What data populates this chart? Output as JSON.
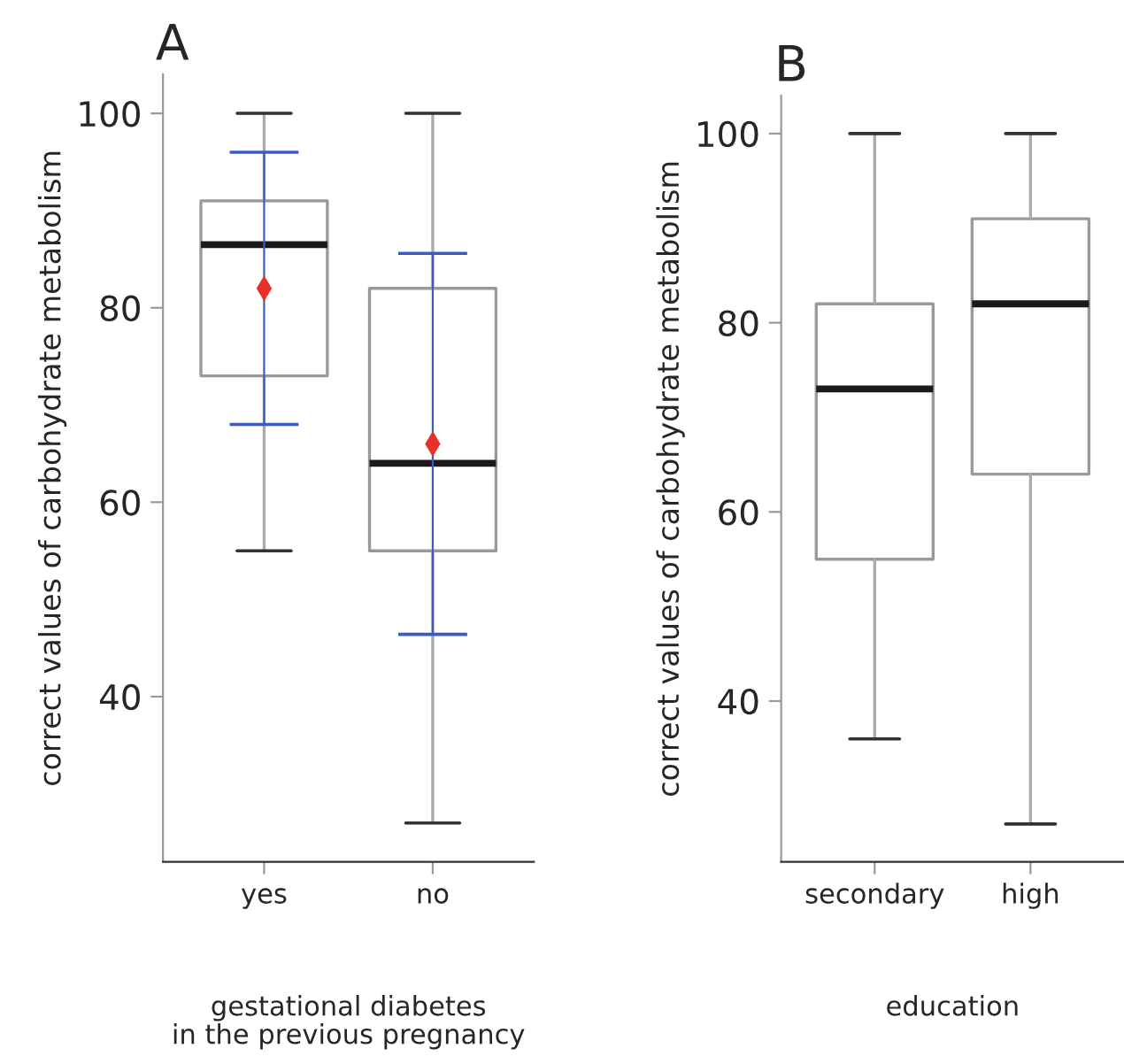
{
  "chart_data": [
    {
      "type": "box",
      "title": "A",
      "xlabel": "gestational diabetes\nin the previous pregnancy",
      "ylabel": "correct values of carbohydrate metabolism",
      "categories": [
        "yes",
        "no"
      ],
      "ylim": [
        23,
        104
      ],
      "yticks": [
        40,
        60,
        80,
        100
      ],
      "grid": false,
      "boxes": [
        {
          "low": 55,
          "q1": 73,
          "median": 86.5,
          "q3": 91,
          "high": 100
        },
        {
          "low": 27,
          "q1": 55,
          "median": 64,
          "q3": 82,
          "high": 100
        }
      ],
      "series": [
        {
          "type": "scatter",
          "x": [
            "yes",
            "no"
          ],
          "values": [
            82,
            66
          ],
          "errors": [
            14,
            19.6
          ],
          "color": "#e8302a",
          "marker": "diamond"
        }
      ]
    },
    {
      "type": "box",
      "title": "B",
      "xlabel": "education",
      "ylabel": "correct values of carbohydrate metabolism",
      "categories": [
        "secondary",
        "high"
      ],
      "ylim": [
        23,
        104
      ],
      "yticks": [
        40,
        60,
        80,
        100
      ],
      "grid": false,
      "boxes": [
        {
          "low": 36,
          "q1": 55,
          "median": 73,
          "q3": 82,
          "high": 100
        },
        {
          "low": 27,
          "q1": 64,
          "median": 82,
          "q3": 91,
          "high": 100
        }
      ]
    }
  ]
}
